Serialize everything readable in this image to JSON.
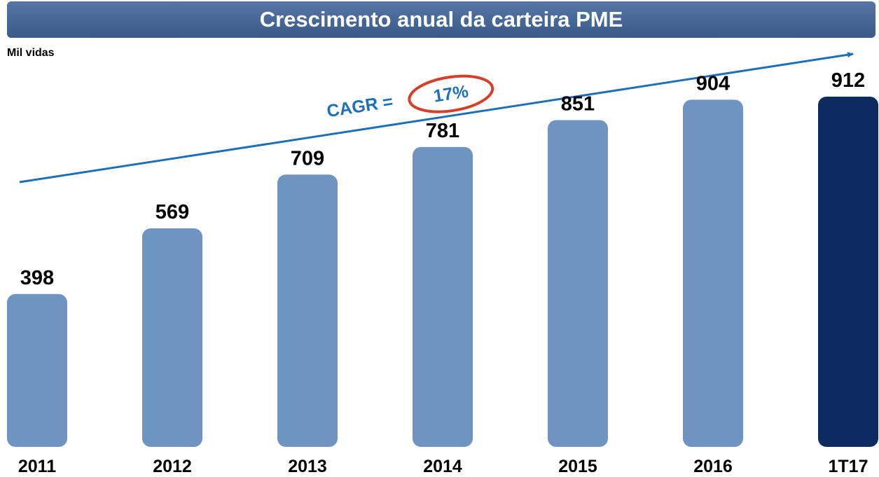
{
  "chart_data": {
    "type": "bar",
    "title": "Crescimento anual da carteira PME",
    "unit_label": "Mil vidas",
    "annotation": {
      "label": "CAGR =",
      "value": "17%"
    },
    "categories": [
      "2011",
      "2012",
      "2013",
      "2014",
      "2015",
      "2016",
      "1T17"
    ],
    "values": [
      398,
      569,
      709,
      781,
      851,
      904,
      912
    ],
    "colors": [
      "#7094c2",
      "#7094c2",
      "#7094c2",
      "#7094c2",
      "#7094c2",
      "#7094c2",
      "#0d2b60"
    ]
  }
}
